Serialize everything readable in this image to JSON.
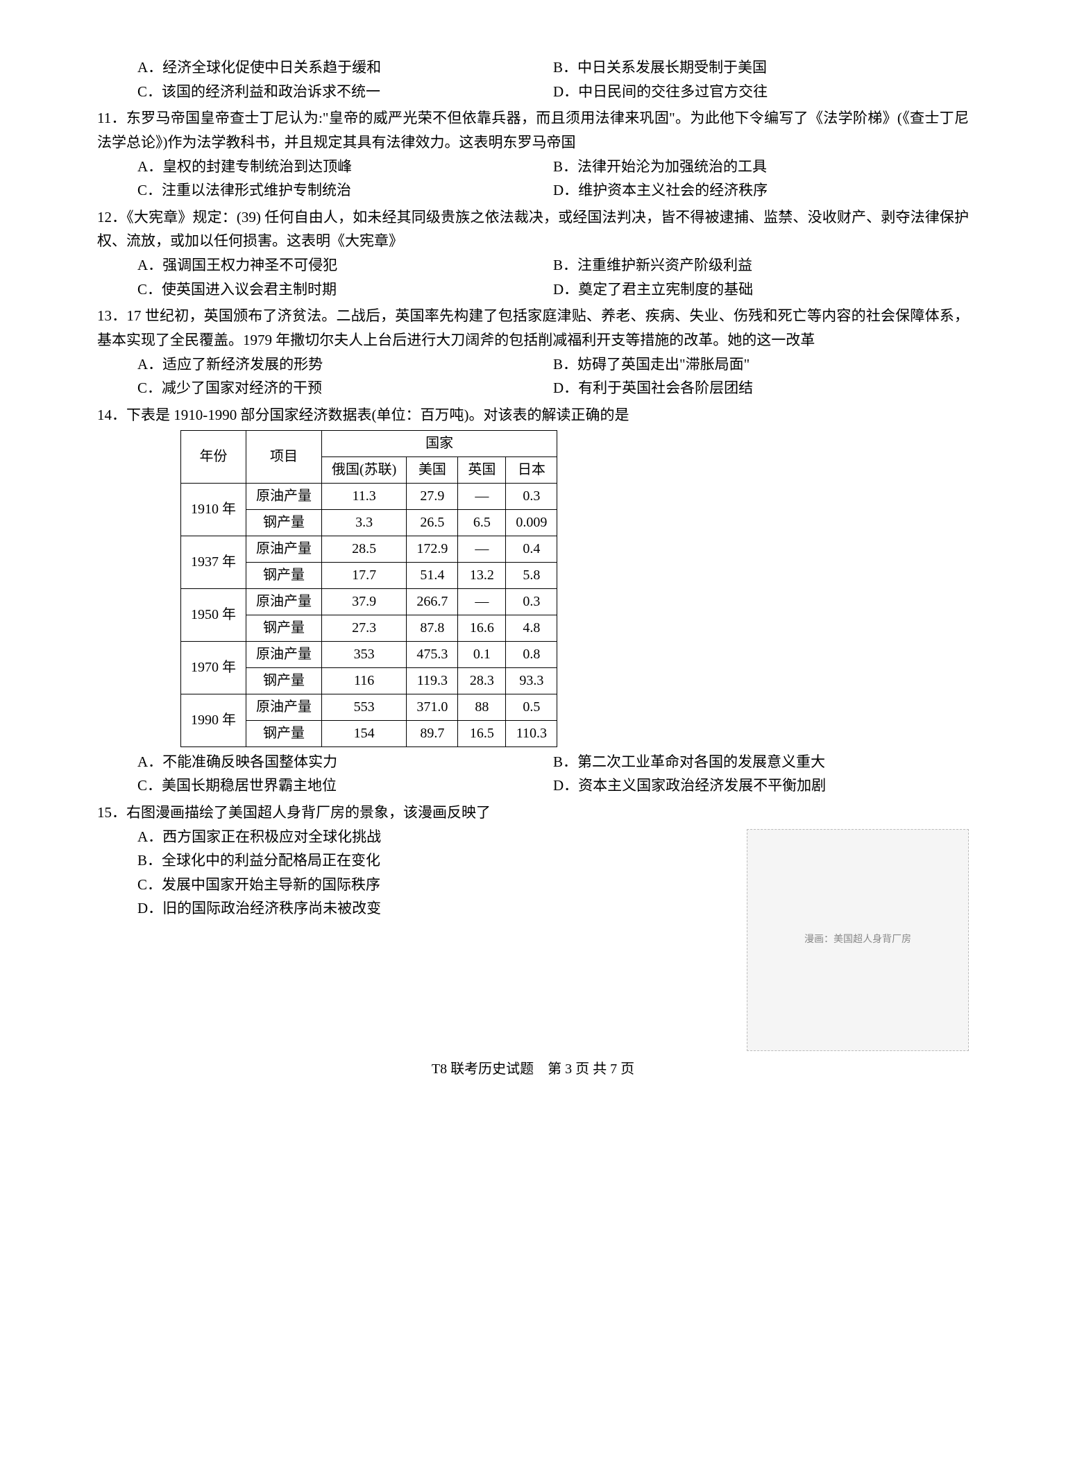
{
  "q10_options": {
    "A": "A．经济全球化促使中日关系趋于缓和",
    "B": "B．中日关系发展长期受制于美国",
    "C": "C．该国的经济利益和政治诉求不统一",
    "D": "D．中日民间的交往多过官方交往"
  },
  "q11": {
    "stem": "11．东罗马帝国皇帝查士丁尼认为:\"皇帝的威严光荣不但依靠兵器，而且须用法律来巩固\"。为此他下令编写了《法学阶梯》(《查士丁尼法学总论》)作为法学教科书，并且规定其具有法律效力。这表明东罗马帝国",
    "A": "A．皇权的封建专制统治到达顶峰",
    "B": "B．法律开始沦为加强统治的工具",
    "C": "C．注重以法律形式维护专制统治",
    "D": "D．维护资本主义社会的经济秩序"
  },
  "q12": {
    "stem": "12．《大宪章》规定：(39) 任何自由人，如未经其同级贵族之依法裁决，或经国法判决，皆不得被逮捕、监禁、没收财产、剥夺法律保护权、流放，或加以任何损害。这表明《大宪章》",
    "A": "A．强调国王权力神圣不可侵犯",
    "B": "B．注重维护新兴资产阶级利益",
    "C": "C．使英国进入议会君主制时期",
    "D": "D．奠定了君主立宪制度的基础"
  },
  "q13": {
    "stem": "13．17 世纪初，英国颁布了济贫法。二战后，英国率先构建了包括家庭津贴、养老、疾病、失业、伤残和死亡等内容的社会保障体系，基本实现了全民覆盖。1979 年撒切尔夫人上台后进行大刀阔斧的包括削减福利开支等措施的改革。她的这一改革",
    "A": "A．适应了新经济发展的形势",
    "B": "B．妨碍了英国走出\"滞胀局面\"",
    "C": "C．减少了国家对经济的干预",
    "D": "D．有利于英国社会各阶层团结"
  },
  "q14": {
    "stem": "14．下表是 1910-1990 部分国家经济数据表(单位：百万吨)。对该表的解读正确的是",
    "A": "A．不能准确反映各国整体实力",
    "B": "B．第二次工业革命对各国的发展意义重大",
    "C": "C．美国长期稳居世界霸主地位",
    "D": "D．资本主义国家政治经济发展不平衡加剧",
    "table": {
      "header1": {
        "year": "年份",
        "item": "项目",
        "country": "国家"
      },
      "header2": {
        "c1": "俄国(苏联)",
        "c2": "美国",
        "c3": "英国",
        "c4": "日本"
      },
      "rows": [
        {
          "year": "1910 年",
          "item": "原油产量",
          "v": [
            "11.3",
            "27.9",
            "—",
            "0.3"
          ]
        },
        {
          "year": "",
          "item": "钢产量",
          "v": [
            "3.3",
            "26.5",
            "6.5",
            "0.009"
          ]
        },
        {
          "year": "1937 年",
          "item": "原油产量",
          "v": [
            "28.5",
            "172.9",
            "—",
            "0.4"
          ]
        },
        {
          "year": "",
          "item": "钢产量",
          "v": [
            "17.7",
            "51.4",
            "13.2",
            "5.8"
          ]
        },
        {
          "year": "1950 年",
          "item": "原油产量",
          "v": [
            "37.9",
            "266.7",
            "—",
            "0.3"
          ]
        },
        {
          "year": "",
          "item": "钢产量",
          "v": [
            "27.3",
            "87.8",
            "16.6",
            "4.8"
          ]
        },
        {
          "year": "1970 年",
          "item": "原油产量",
          "v": [
            "353",
            "475.3",
            "0.1",
            "0.8"
          ]
        },
        {
          "year": "",
          "item": "钢产量",
          "v": [
            "116",
            "119.3",
            "28.3",
            "93.3"
          ]
        },
        {
          "year": "1990 年",
          "item": "原油产量",
          "v": [
            "553",
            "371.0",
            "88",
            "0.5"
          ]
        },
        {
          "year": "",
          "item": "钢产量",
          "v": [
            "154",
            "89.7",
            "16.5",
            "110.3"
          ]
        }
      ]
    }
  },
  "q15": {
    "stem": "15．右图漫画描绘了美国超人身背厂房的景象，该漫画反映了",
    "A": "A．西方国家正在积极应对全球化挑战",
    "B": "B．全球化中的利益分配格局正在变化",
    "C": "C．发展中国家开始主导新的国际秩序",
    "D": "D．旧的国际政治经济秩序尚未被改变",
    "image_caption": "漫画：美国超人身背厂房"
  },
  "footer": "T8 联考历史试题　第 3 页 共 7 页"
}
